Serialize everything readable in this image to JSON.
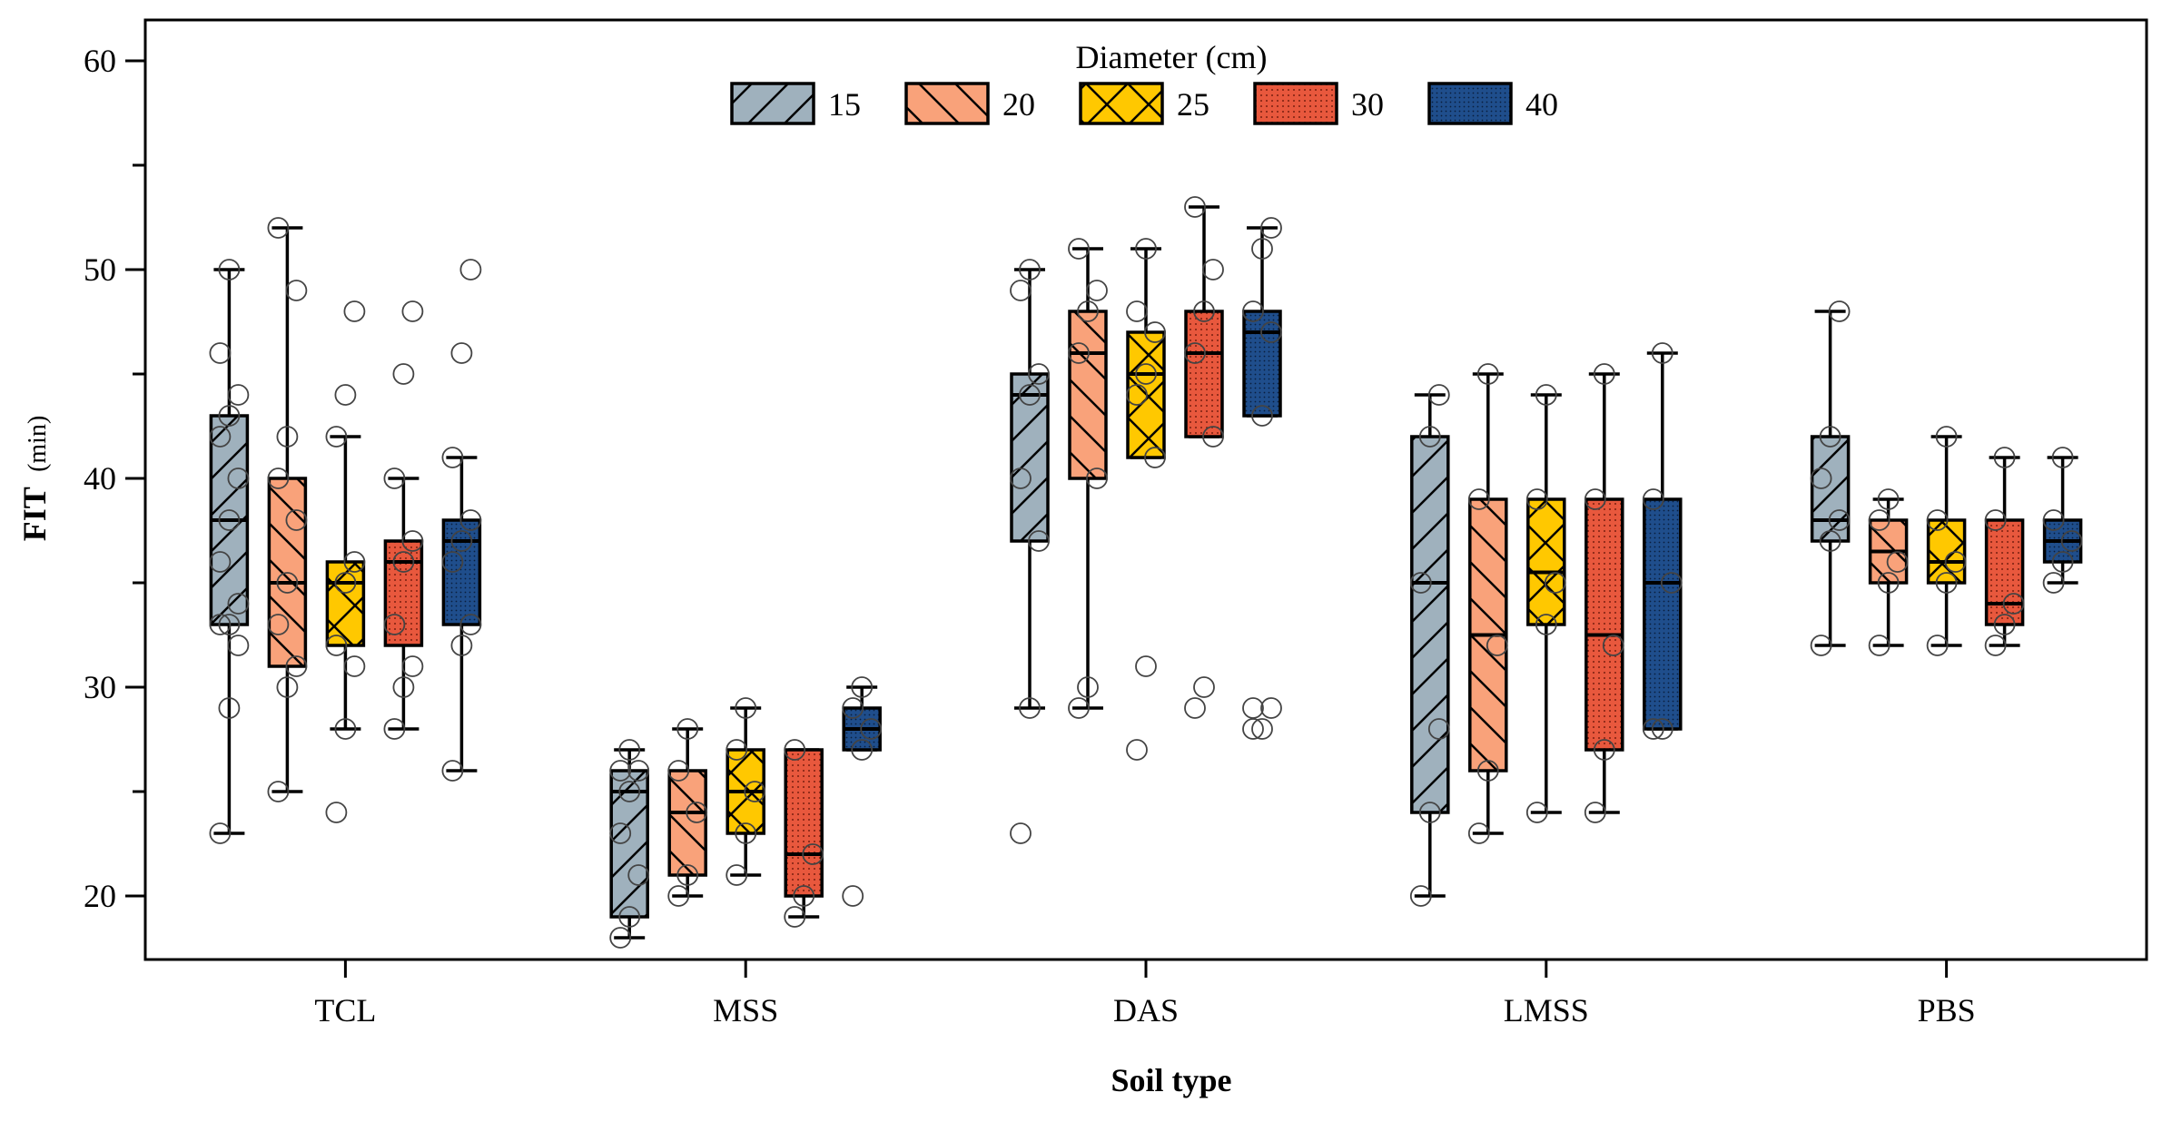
{
  "chart_data": {
    "type": "box",
    "title": "",
    "xlabel": "Soil type",
    "ylabel": "FIT",
    "ylabel_unit": "(min)",
    "ylim": [
      17,
      62
    ],
    "yticks": [
      20,
      30,
      40,
      50,
      60
    ],
    "grid": false,
    "legend": {
      "title": "Diameter (cm)",
      "position": "top-center",
      "entries": [
        "15",
        "20",
        "25",
        "30",
        "40"
      ]
    },
    "categories": [
      "TCL",
      "MSS",
      "DAS",
      "LMSS",
      "PBS"
    ],
    "series": [
      {
        "name": "15",
        "color": "#9fb1bd",
        "pattern": "forward-diagonal",
        "boxes": [
          {
            "whisker_low": 23,
            "q1": 33,
            "median": 38,
            "q3": 43,
            "whisker_high": 50,
            "points": [
              23,
              29,
              32,
              33,
              33,
              34,
              36,
              38,
              40,
              42,
              43,
              44,
              46,
              50
            ]
          },
          {
            "whisker_low": 18,
            "q1": 19,
            "median": 25,
            "q3": 26,
            "whisker_high": 27,
            "points": [
              18,
              19,
              21,
              23,
              25,
              26,
              26,
              27
            ]
          },
          {
            "whisker_low": 29,
            "q1": 37,
            "median": 44,
            "q3": 45,
            "whisker_high": 50,
            "points": [
              23,
              29,
              37,
              40,
              44,
              45,
              49,
              50
            ]
          },
          {
            "whisker_low": 20,
            "q1": 24,
            "median": 35,
            "q3": 42,
            "whisker_high": 44,
            "points": [
              20,
              24,
              28,
              35,
              42,
              44
            ]
          },
          {
            "whisker_low": 32,
            "q1": 37,
            "median": 38,
            "q3": 42,
            "whisker_high": 48,
            "points": [
              32,
              37,
              38,
              40,
              42,
              48
            ]
          }
        ]
      },
      {
        "name": "20",
        "color": "#f9a27a",
        "pattern": "backward-diagonal",
        "boxes": [
          {
            "whisker_low": 25,
            "q1": 31,
            "median": 35,
            "q3": 40,
            "whisker_high": 52,
            "points": [
              25,
              30,
              31,
              33,
              35,
              38,
              40,
              42,
              49,
              52
            ]
          },
          {
            "whisker_low": 20,
            "q1": 21,
            "median": 24,
            "q3": 26,
            "whisker_high": 28,
            "points": [
              20,
              21,
              24,
              26,
              28
            ]
          },
          {
            "whisker_low": 29,
            "q1": 40,
            "median": 46,
            "q3": 48,
            "whisker_high": 51,
            "points": [
              29,
              30,
              40,
              46,
              48,
              49,
              51
            ]
          },
          {
            "whisker_low": 23,
            "q1": 26,
            "median": 32.5,
            "q3": 39,
            "whisker_high": 45,
            "points": [
              23,
              26,
              32,
              39,
              45
            ]
          },
          {
            "whisker_low": 32,
            "q1": 35,
            "median": 36.5,
            "q3": 38,
            "whisker_high": 39,
            "points": [
              32,
              35,
              36,
              38,
              39
            ]
          }
        ]
      },
      {
        "name": "25",
        "color": "#ffc800",
        "pattern": "cross",
        "boxes": [
          {
            "whisker_low": 28,
            "q1": 32,
            "median": 35,
            "q3": 36,
            "whisker_high": 42,
            "points": [
              24,
              28,
              31,
              32,
              35,
              36,
              42,
              44,
              48
            ]
          },
          {
            "whisker_low": 21,
            "q1": 23,
            "median": 25,
            "q3": 27,
            "whisker_high": 29,
            "points": [
              21,
              23,
              25,
              27,
              29
            ]
          },
          {
            "whisker_low": 41,
            "q1": 41,
            "median": 45,
            "q3": 47,
            "whisker_high": 51,
            "points": [
              27,
              31,
              41,
              44,
              45,
              47,
              48,
              51
            ]
          },
          {
            "whisker_low": 24,
            "q1": 33,
            "median": 35.5,
            "q3": 39,
            "whisker_high": 44,
            "points": [
              24,
              33,
              35,
              39,
              44
            ]
          },
          {
            "whisker_low": 32,
            "q1": 35,
            "median": 36,
            "q3": 38,
            "whisker_high": 42,
            "points": [
              32,
              35,
              36,
              38,
              42
            ]
          }
        ]
      },
      {
        "name": "30",
        "color": "#e8583d",
        "pattern": "dots",
        "boxes": [
          {
            "whisker_low": 28,
            "q1": 32,
            "median": 36,
            "q3": 37,
            "whisker_high": 40,
            "points": [
              28,
              30,
              31,
              33,
              36,
              37,
              40,
              45,
              48
            ]
          },
          {
            "whisker_low": 19,
            "q1": 20,
            "median": 22,
            "q3": 27,
            "whisker_high": 27,
            "points": [
              19,
              20,
              22,
              27
            ]
          },
          {
            "whisker_low": 42,
            "q1": 42,
            "median": 46,
            "q3": 48,
            "whisker_high": 53,
            "points": [
              29,
              30,
              42,
              46,
              48,
              50,
              53
            ]
          },
          {
            "whisker_low": 24,
            "q1": 27,
            "median": 32.5,
            "q3": 39,
            "whisker_high": 45,
            "points": [
              24,
              27,
              32,
              39,
              45
            ]
          },
          {
            "whisker_low": 32,
            "q1": 33,
            "median": 34,
            "q3": 38,
            "whisker_high": 41,
            "points": [
              32,
              33,
              34,
              38,
              41
            ]
          }
        ]
      },
      {
        "name": "40",
        "color": "#1f4e8c",
        "pattern": "dense-dots",
        "boxes": [
          {
            "whisker_low": 26,
            "q1": 33,
            "median": 37,
            "q3": 38,
            "whisker_high": 41,
            "points": [
              26,
              32,
              33,
              36,
              37,
              38,
              41,
              46,
              50
            ]
          },
          {
            "whisker_low": 27,
            "q1": 27,
            "median": 28,
            "q3": 29,
            "whisker_high": 30,
            "points": [
              20,
              27,
              28,
              29,
              30
            ]
          },
          {
            "whisker_low": 43,
            "q1": 43,
            "median": 47,
            "q3": 48,
            "whisker_high": 52,
            "points": [
              28,
              28,
              29,
              29,
              43,
              47,
              48,
              51,
              52
            ]
          },
          {
            "whisker_low": 28,
            "q1": 28,
            "median": 35,
            "q3": 39,
            "whisker_high": 46,
            "points": [
              28,
              28,
              35,
              39,
              46
            ]
          },
          {
            "whisker_low": 35,
            "q1": 36,
            "median": 37,
            "q3": 38,
            "whisker_high": 41,
            "points": [
              35,
              36,
              37,
              38,
              41
            ]
          }
        ]
      }
    ]
  }
}
